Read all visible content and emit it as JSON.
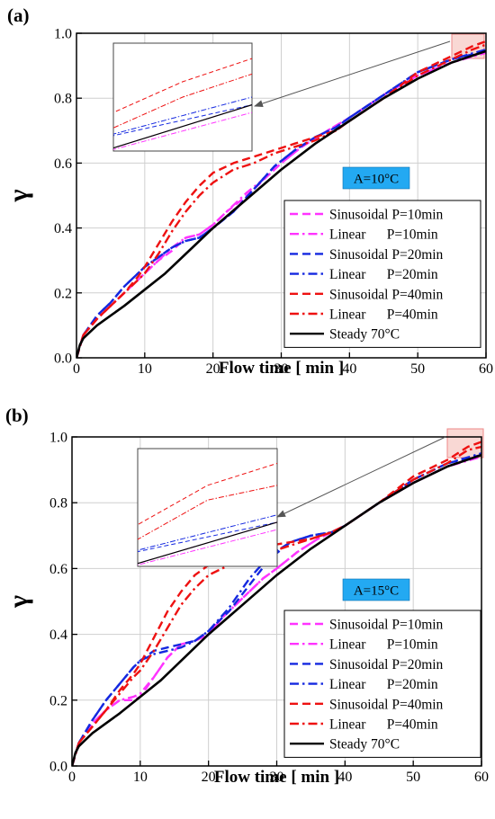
{
  "colors": {
    "magenta": "#ff33ff",
    "blue": "#1428e0",
    "red": "#ee1111",
    "black": "#000000",
    "annotation_fill": "#23a9f2",
    "zoom_box": "#f4b8b0"
  },
  "chart_data": [
    {
      "type": "line",
      "panel_label": "(a)",
      "xlabel": "Flow time [ min ]",
      "ylabel": "γ",
      "xlim": [
        0,
        60
      ],
      "ylim": [
        0,
        1.0
      ],
      "xticks": [
        0,
        10,
        20,
        30,
        40,
        50,
        60
      ],
      "yticks": [
        "0.0",
        "0.2",
        "0.4",
        "0.6",
        "0.8",
        "1.0"
      ],
      "grid": true,
      "legend_position": "bottom-right",
      "annotation": "A=10°C",
      "inset": "zoom of region x≈56–60, y≈0.92–0.98",
      "series": [
        {
          "name": "Sinusoidal P=10min",
          "color": "magenta",
          "dash": "dash",
          "x": [
            0,
            1,
            3,
            5,
            7,
            9,
            10,
            12,
            14,
            16,
            18,
            20,
            22,
            25,
            28,
            30,
            33,
            36,
            40,
            45,
            50,
            55,
            60
          ],
          "y": [
            0,
            0.07,
            0.12,
            0.16,
            0.2,
            0.24,
            0.26,
            0.3,
            0.33,
            0.37,
            0.38,
            0.41,
            0.45,
            0.5,
            0.56,
            0.6,
            0.65,
            0.69,
            0.74,
            0.81,
            0.87,
            0.91,
            0.945
          ]
        },
        {
          "name": "Linear      P=10min",
          "color": "magenta",
          "dash": "dashdot",
          "x": [
            0,
            1,
            3,
            5,
            7,
            9,
            10,
            12,
            14,
            16,
            18,
            20,
            22,
            25,
            28,
            30,
            33,
            36,
            40,
            45,
            50,
            55,
            60
          ],
          "y": [
            0,
            0.07,
            0.12,
            0.16,
            0.2,
            0.24,
            0.26,
            0.3,
            0.34,
            0.37,
            0.38,
            0.41,
            0.45,
            0.51,
            0.56,
            0.6,
            0.65,
            0.69,
            0.74,
            0.81,
            0.87,
            0.91,
            0.94
          ]
        },
        {
          "name": "Sinusoidal P=20min",
          "color": "blue",
          "dash": "dash",
          "x": [
            0,
            1,
            3,
            5,
            7,
            9,
            10,
            12,
            14,
            16,
            18,
            20,
            23,
            26,
            29,
            32,
            35,
            38,
            40,
            45,
            50,
            55,
            60
          ],
          "y": [
            0,
            0.07,
            0.13,
            0.17,
            0.22,
            0.26,
            0.28,
            0.31,
            0.34,
            0.36,
            0.37,
            0.4,
            0.45,
            0.52,
            0.59,
            0.64,
            0.68,
            0.71,
            0.74,
            0.81,
            0.88,
            0.92,
            0.945
          ]
        },
        {
          "name": "Linear      P=20min",
          "color": "blue",
          "dash": "dashdot",
          "x": [
            0,
            1,
            3,
            5,
            7,
            9,
            10,
            12,
            14,
            16,
            18,
            20,
            23,
            26,
            29,
            32,
            35,
            38,
            40,
            45,
            50,
            55,
            60
          ],
          "y": [
            0,
            0.07,
            0.13,
            0.17,
            0.22,
            0.26,
            0.28,
            0.31,
            0.34,
            0.36,
            0.37,
            0.4,
            0.45,
            0.52,
            0.59,
            0.64,
            0.68,
            0.71,
            0.74,
            0.81,
            0.88,
            0.92,
            0.95
          ]
        },
        {
          "name": "Sinusoidal P=40min",
          "color": "red",
          "dash": "dash",
          "x": [
            0,
            1,
            3,
            5,
            7,
            9,
            10,
            12,
            14,
            16,
            18,
            20,
            23,
            26,
            29,
            32,
            35,
            38,
            40,
            45,
            50,
            55,
            58,
            60
          ],
          "y": [
            0,
            0.07,
            0.12,
            0.16,
            0.2,
            0.25,
            0.28,
            0.35,
            0.42,
            0.48,
            0.53,
            0.57,
            0.6,
            0.62,
            0.64,
            0.66,
            0.68,
            0.7,
            0.73,
            0.8,
            0.88,
            0.93,
            0.96,
            0.975
          ]
        },
        {
          "name": "Linear      P=40min",
          "color": "red",
          "dash": "dashdot",
          "x": [
            0,
            1,
            3,
            5,
            7,
            9,
            10,
            12,
            14,
            16,
            18,
            20,
            23,
            26,
            29,
            32,
            35,
            38,
            40,
            45,
            50,
            55,
            58,
            60
          ],
          "y": [
            0,
            0.07,
            0.12,
            0.16,
            0.2,
            0.24,
            0.26,
            0.32,
            0.39,
            0.45,
            0.5,
            0.54,
            0.58,
            0.6,
            0.63,
            0.65,
            0.67,
            0.7,
            0.73,
            0.8,
            0.87,
            0.92,
            0.95,
            0.965
          ]
        },
        {
          "name": "Steady 70°C",
          "color": "black",
          "dash": "solid",
          "x": [
            0,
            0.5,
            1,
            2,
            3,
            5,
            7,
            10,
            13,
            16,
            20,
            25,
            30,
            35,
            40,
            45,
            50,
            55,
            60
          ],
          "y": [
            0,
            0.04,
            0.06,
            0.08,
            0.1,
            0.13,
            0.16,
            0.21,
            0.26,
            0.32,
            0.4,
            0.49,
            0.58,
            0.66,
            0.73,
            0.8,
            0.86,
            0.91,
            0.945
          ]
        }
      ]
    },
    {
      "type": "line",
      "panel_label": "(b)",
      "xlabel": "Flow time [ min ]",
      "ylabel": "γ",
      "xlim": [
        0,
        60
      ],
      "ylim": [
        0,
        1.0
      ],
      "xticks": [
        0,
        10,
        20,
        30,
        40,
        50,
        60
      ],
      "yticks": [
        "0.0",
        "0.2",
        "0.4",
        "0.6",
        "0.8",
        "1.0"
      ],
      "grid": true,
      "legend_position": "bottom-right",
      "annotation": "A=15°C",
      "inset": "zoom of region x≈56–60, y≈0.92–0.99",
      "series": [
        {
          "name": "Sinusoidal P=10min",
          "color": "magenta",
          "dash": "dash",
          "x": [
            0,
            1,
            3,
            5,
            7,
            9,
            10,
            12,
            14,
            16,
            18,
            20,
            22,
            25,
            28,
            30,
            33,
            36,
            40,
            45,
            50,
            55,
            60
          ],
          "y": [
            0,
            0.07,
            0.13,
            0.17,
            0.2,
            0.2,
            0.21,
            0.27,
            0.33,
            0.37,
            0.38,
            0.4,
            0.45,
            0.51,
            0.57,
            0.6,
            0.65,
            0.69,
            0.73,
            0.8,
            0.86,
            0.91,
            0.945
          ]
        },
        {
          "name": "Linear      P=10min",
          "color": "magenta",
          "dash": "dashdot",
          "x": [
            0,
            1,
            3,
            5,
            7,
            9,
            10,
            12,
            14,
            16,
            18,
            20,
            22,
            25,
            28,
            30,
            33,
            36,
            40,
            45,
            50,
            55,
            60
          ],
          "y": [
            0,
            0.07,
            0.13,
            0.17,
            0.2,
            0.21,
            0.22,
            0.27,
            0.33,
            0.37,
            0.38,
            0.4,
            0.45,
            0.51,
            0.57,
            0.6,
            0.65,
            0.69,
            0.73,
            0.8,
            0.86,
            0.91,
            0.94
          ]
        },
        {
          "name": "Sinusoidal P=20min",
          "color": "blue",
          "dash": "dash",
          "x": [
            0,
            1,
            3,
            5,
            7,
            9,
            10,
            12,
            14,
            16,
            18,
            20,
            23,
            26,
            29,
            32,
            35,
            38,
            40,
            45,
            50,
            55,
            60
          ],
          "y": [
            0,
            0.07,
            0.14,
            0.2,
            0.25,
            0.3,
            0.32,
            0.35,
            0.36,
            0.37,
            0.38,
            0.41,
            0.47,
            0.55,
            0.63,
            0.68,
            0.7,
            0.71,
            0.73,
            0.8,
            0.87,
            0.92,
            0.945
          ]
        },
        {
          "name": "Linear      P=20min",
          "color": "blue",
          "dash": "dashdot",
          "x": [
            0,
            1,
            3,
            5,
            7,
            9,
            10,
            12,
            14,
            16,
            18,
            20,
            23,
            26,
            29,
            32,
            35,
            38,
            40,
            45,
            50,
            55,
            60
          ],
          "y": [
            0,
            0.07,
            0.14,
            0.2,
            0.25,
            0.3,
            0.32,
            0.34,
            0.35,
            0.36,
            0.38,
            0.41,
            0.48,
            0.57,
            0.64,
            0.68,
            0.7,
            0.71,
            0.73,
            0.8,
            0.87,
            0.92,
            0.95
          ]
        },
        {
          "name": "Sinusoidal P=40min",
          "color": "red",
          "dash": "dash",
          "x": [
            0,
            1,
            3,
            5,
            7,
            9,
            10,
            12,
            14,
            16,
            18,
            20,
            23,
            26,
            29,
            32,
            35,
            38,
            40,
            45,
            50,
            55,
            58,
            60
          ],
          "y": [
            0,
            0.07,
            0.12,
            0.17,
            0.23,
            0.28,
            0.31,
            0.39,
            0.47,
            0.53,
            0.58,
            0.61,
            0.64,
            0.66,
            0.67,
            0.68,
            0.69,
            0.71,
            0.73,
            0.8,
            0.88,
            0.93,
            0.97,
            0.985
          ]
        },
        {
          "name": "Linear      P=40min",
          "color": "red",
          "dash": "dashdot",
          "x": [
            0,
            1,
            3,
            5,
            7,
            9,
            10,
            12,
            14,
            16,
            18,
            20,
            23,
            26,
            29,
            32,
            35,
            38,
            40,
            45,
            50,
            55,
            58,
            60
          ],
          "y": [
            0,
            0.07,
            0.12,
            0.17,
            0.22,
            0.27,
            0.29,
            0.35,
            0.42,
            0.49,
            0.54,
            0.58,
            0.61,
            0.63,
            0.65,
            0.67,
            0.69,
            0.71,
            0.73,
            0.8,
            0.87,
            0.92,
            0.96,
            0.97
          ]
        },
        {
          "name": "Steady 70°C",
          "color": "black",
          "dash": "solid",
          "x": [
            0,
            0.5,
            1,
            2,
            3,
            5,
            7,
            10,
            13,
            16,
            20,
            25,
            30,
            35,
            40,
            45,
            50,
            55,
            60
          ],
          "y": [
            0,
            0.04,
            0.06,
            0.08,
            0.1,
            0.13,
            0.16,
            0.21,
            0.26,
            0.32,
            0.4,
            0.49,
            0.58,
            0.66,
            0.73,
            0.8,
            0.86,
            0.91,
            0.945
          ]
        }
      ]
    }
  ]
}
